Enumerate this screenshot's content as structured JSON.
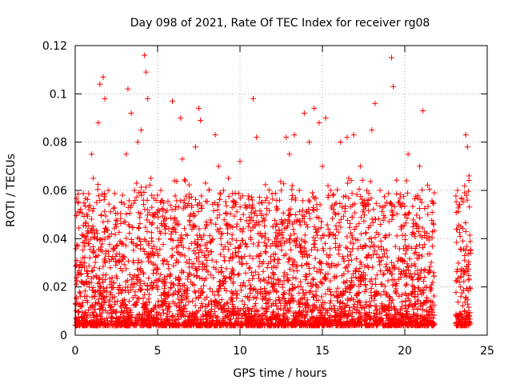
{
  "chart_data": {
    "type": "scatter",
    "title": "Day 098 of 2021, Rate Of TEC Index for receiver rg08",
    "xlabel": "GPS time / hours",
    "ylabel": "ROTI / TECUs",
    "xlim": [
      0,
      25
    ],
    "ylim": [
      0,
      0.12
    ],
    "xticks": [
      "0",
      "5",
      "10",
      "15",
      "20",
      "25"
    ],
    "yticks": [
      "0",
      "0.02",
      "0.04",
      "0.06",
      "0.08",
      "0.1",
      "0.12"
    ],
    "grid": true,
    "marker": "+",
    "color": "#ff0000",
    "data_gaps_hours": [
      [
        21.8,
        23.1
      ]
    ],
    "series": [
      {
        "points": [
          [
            0.1,
            0.031
          ],
          [
            0.2,
            0.025
          ],
          [
            0.3,
            0.012
          ],
          [
            0.5,
            0.008
          ],
          [
            0.7,
            0.05
          ],
          [
            1.0,
            0.075
          ],
          [
            1.1,
            0.065
          ],
          [
            1.3,
            0.055
          ],
          [
            1.4,
            0.088
          ],
          [
            1.5,
            0.104
          ],
          [
            1.7,
            0.107
          ],
          [
            1.8,
            0.098
          ],
          [
            2.0,
            0.06
          ],
          [
            2.2,
            0.042
          ],
          [
            2.5,
            0.045
          ],
          [
            2.8,
            0.055
          ],
          [
            3.1,
            0.075
          ],
          [
            3.2,
            0.102
          ],
          [
            3.4,
            0.092
          ],
          [
            3.6,
            0.06
          ],
          [
            3.8,
            0.08
          ],
          [
            4.0,
            0.085
          ],
          [
            4.2,
            0.116
          ],
          [
            4.3,
            0.109
          ],
          [
            4.4,
            0.098
          ],
          [
            4.6,
            0.065
          ],
          [
            5.0,
            0.058
          ],
          [
            5.2,
            0.06
          ],
          [
            5.5,
            0.045
          ],
          [
            5.8,
            0.04
          ],
          [
            5.9,
            0.097
          ],
          [
            6.4,
            0.09
          ],
          [
            6.5,
            0.073
          ],
          [
            7.0,
            0.05
          ],
          [
            7.3,
            0.078
          ],
          [
            7.5,
            0.094
          ],
          [
            7.6,
            0.089
          ],
          [
            8.0,
            0.035
          ],
          [
            8.5,
            0.083
          ],
          [
            8.7,
            0.07
          ],
          [
            9.0,
            0.06
          ],
          [
            9.3,
            0.065
          ],
          [
            9.6,
            0.055
          ],
          [
            9.8,
            0.045
          ],
          [
            10.0,
            0.072
          ],
          [
            10.2,
            0.05
          ],
          [
            10.5,
            0.045
          ],
          [
            10.8,
            0.098
          ],
          [
            11.0,
            0.082
          ],
          [
            11.3,
            0.055
          ],
          [
            11.6,
            0.05
          ],
          [
            12.0,
            0.045
          ],
          [
            12.2,
            0.04
          ],
          [
            12.5,
            0.06
          ],
          [
            12.8,
            0.082
          ],
          [
            13.0,
            0.075
          ],
          [
            13.3,
            0.083
          ],
          [
            13.6,
            0.06
          ],
          [
            13.9,
            0.092
          ],
          [
            14.2,
            0.08
          ],
          [
            14.5,
            0.094
          ],
          [
            14.8,
            0.088
          ],
          [
            15.0,
            0.07
          ],
          [
            15.2,
            0.09
          ],
          [
            15.5,
            0.06
          ],
          [
            15.8,
            0.05
          ],
          [
            16.1,
            0.08
          ],
          [
            16.5,
            0.082
          ],
          [
            16.9,
            0.083
          ],
          [
            17.3,
            0.07
          ],
          [
            17.7,
            0.06
          ],
          [
            18.0,
            0.085
          ],
          [
            18.2,
            0.096
          ],
          [
            18.5,
            0.06
          ],
          [
            18.9,
            0.055
          ],
          [
            19.2,
            0.115
          ],
          [
            19.3,
            0.103
          ],
          [
            19.6,
            0.055
          ],
          [
            20.0,
            0.05
          ],
          [
            20.2,
            0.075
          ],
          [
            20.5,
            0.045
          ],
          [
            20.9,
            0.07
          ],
          [
            21.1,
            0.093
          ],
          [
            21.4,
            0.05
          ],
          [
            21.7,
            0.055
          ],
          [
            23.2,
            0.06
          ],
          [
            23.4,
            0.045
          ],
          [
            23.7,
            0.083
          ],
          [
            23.8,
            0.078
          ],
          [
            23.9,
            0.066
          ],
          [
            24.0,
            0.034
          ]
        ]
      }
    ]
  }
}
